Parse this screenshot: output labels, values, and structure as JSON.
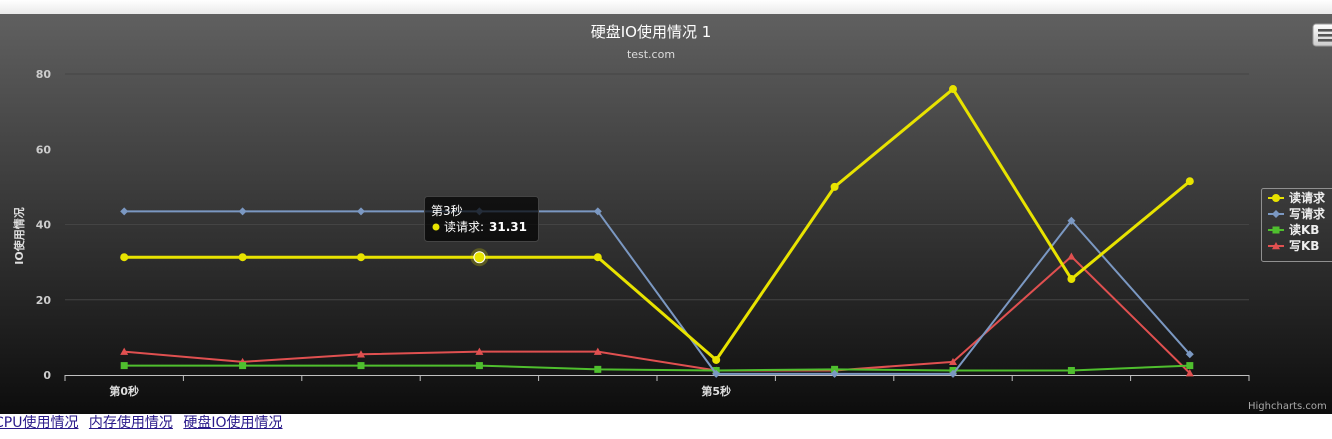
{
  "chart_data": {
    "type": "line",
    "title": "硬盘IO使用情况 1",
    "subtitle": "test.com",
    "xlabel": "",
    "ylabel": "IO使用情况",
    "ylim": [
      0,
      80
    ],
    "yticks": [
      0,
      20,
      40,
      60,
      80
    ],
    "x_tick_labels": [
      {
        "index": 0,
        "label": "第0秒"
      },
      {
        "index": 5,
        "label": "第5秒"
      }
    ],
    "x": [
      0,
      1,
      2,
      3,
      4,
      5,
      6,
      7,
      8,
      9
    ],
    "legend_position": "right",
    "grid": true,
    "series": [
      {
        "name": "读请求",
        "color": "#e8e300",
        "marker": "circle",
        "values": [
          31.31,
          31.31,
          31.31,
          31.31,
          31.31,
          4,
          50,
          76,
          25.5,
          51.5
        ]
      },
      {
        "name": "写请求",
        "color": "#7b98c2",
        "marker": "diamond",
        "values": [
          43.5,
          43.5,
          43.5,
          43.5,
          43.5,
          0.3,
          0.3,
          0.3,
          41,
          5.5
        ]
      },
      {
        "name": "读KB",
        "color": "#4fbf2e",
        "marker": "square",
        "values": [
          2.5,
          2.5,
          2.5,
          2.5,
          1.5,
          1.2,
          1.5,
          1.2,
          1.2,
          2.5
        ]
      },
      {
        "name": "写KB",
        "color": "#e05050",
        "marker": "triangle",
        "values": [
          6.2,
          3.5,
          5.5,
          6.2,
          6.2,
          1.2,
          1.2,
          3.5,
          31.5,
          0.5
        ]
      }
    ],
    "tooltip": {
      "category": "第3秒",
      "series": "读请求",
      "value_text": "31.31"
    },
    "credits": "Highcharts.com"
  },
  "links": [
    "CPU使用情况",
    "内存使用情况",
    "硬盘IO使用情况"
  ],
  "menu_icon": "hamburger-menu-icon"
}
